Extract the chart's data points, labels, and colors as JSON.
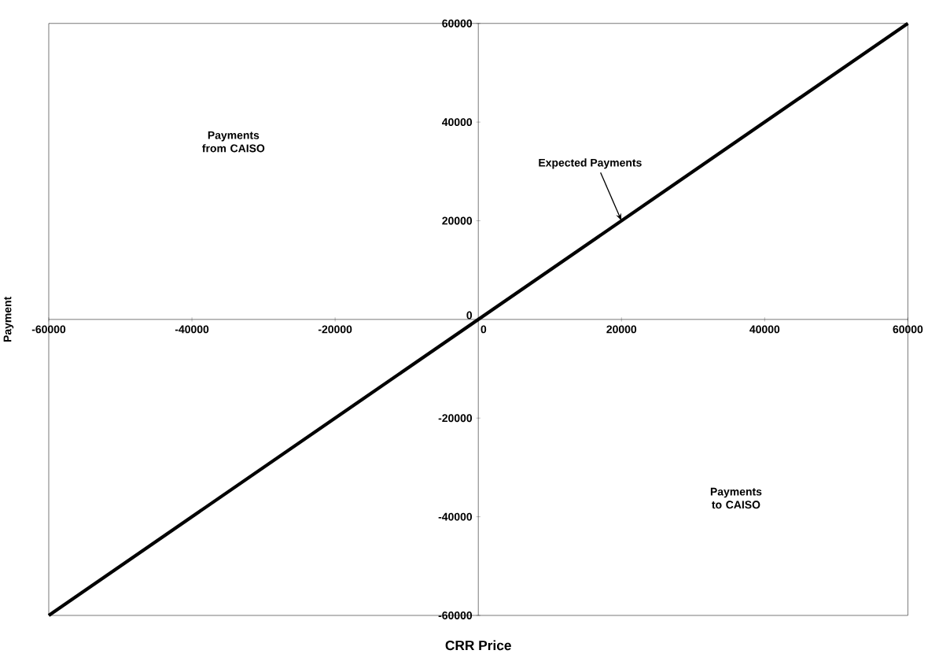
{
  "chart_data": {
    "type": "line",
    "xlabel": "CRR Price",
    "ylabel": "Payment",
    "xlim": [
      -60000,
      60000
    ],
    "ylim": [
      -60000,
      60000
    ],
    "xticks": [
      -60000,
      -40000,
      -20000,
      0,
      20000,
      40000,
      60000
    ],
    "yticks": [
      -60000,
      -40000,
      -20000,
      0,
      20000,
      40000,
      60000
    ],
    "series": [
      {
        "x": [
          -60000,
          60000
        ],
        "values": [
          -60000,
          60000
        ],
        "color": "#000000"
      }
    ],
    "annotations": [
      "Payments from CAISO",
      {
        "text": "Expected Payments",
        "x": 20000,
        "y": 20000
      },
      "Payments to CAISO"
    ]
  }
}
